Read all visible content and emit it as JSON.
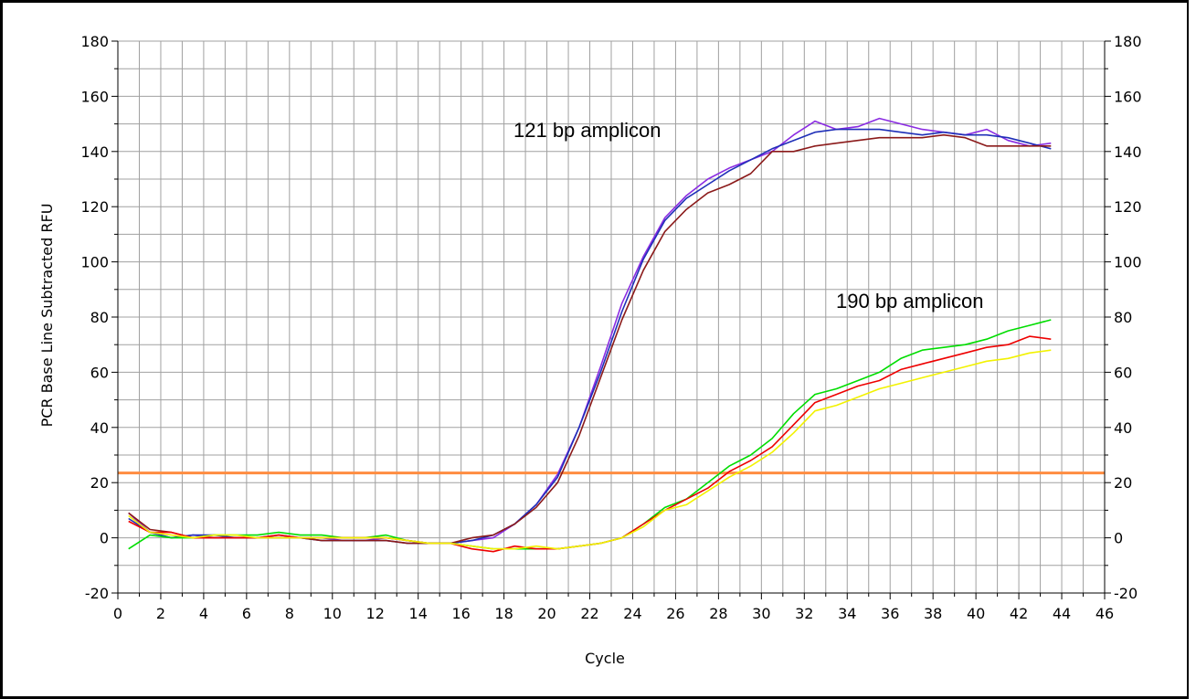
{
  "chart_data": {
    "type": "line",
    "title": "",
    "xlabel": "Cycle",
    "ylabel": "PCR Base Line Subtracted RFU",
    "xlim": [
      0,
      46
    ],
    "ylim": [
      -20,
      180
    ],
    "x_major_ticks": [
      0,
      2,
      4,
      6,
      8,
      10,
      12,
      14,
      16,
      18,
      20,
      22,
      24,
      26,
      28,
      30,
      32,
      34,
      36,
      38,
      40,
      42,
      44,
      46
    ],
    "y_major_ticks": [
      -20,
      0,
      20,
      40,
      60,
      80,
      100,
      120,
      140,
      160,
      180
    ],
    "y_ticks_right": true,
    "grid": true,
    "grid_color": "#a0a0a0",
    "threshold": {
      "value": 23.5,
      "color": "#ff8c40"
    },
    "annotations": [
      {
        "text": "121 bp amplicon",
        "x": 20.5,
        "y": 148
      },
      {
        "text": "190 bp amplicon",
        "x": 33.5,
        "y": 83
      }
    ],
    "series": [
      {
        "color": "#8a2be2",
        "x": [
          0.5,
          1.5,
          2.5,
          3.5,
          4.5,
          5.5,
          6.5,
          7.5,
          8.5,
          9.5,
          10.5,
          11.5,
          12.5,
          13.5,
          14.5,
          15.5,
          16.5,
          17.5,
          18.5,
          19.5,
          20.5,
          21.5,
          22.5,
          23.5,
          24.5,
          25.5,
          26.5,
          27.5,
          28.5,
          29.5,
          30.5,
          31.5,
          32.5,
          33.5,
          34.5,
          35.5,
          36.5,
          37.5,
          38.5,
          39.5,
          40.5,
          41.5,
          42.5,
          43.5
        ],
        "y": [
          9,
          2,
          0,
          1,
          0,
          0,
          0,
          1,
          0,
          0,
          -1,
          -1,
          0,
          -1,
          -2,
          -2,
          -1,
          0,
          5,
          12,
          23,
          40,
          62,
          85,
          102,
          116,
          124,
          130,
          134,
          137,
          140,
          146,
          151,
          148,
          149,
          152,
          150,
          148,
          147,
          146,
          148,
          144,
          142,
          143
        ]
      },
      {
        "color": "#1f2fb8",
        "x": [
          0.5,
          1.5,
          2.5,
          3.5,
          4.5,
          5.5,
          6.5,
          7.5,
          8.5,
          9.5,
          10.5,
          11.5,
          12.5,
          13.5,
          14.5,
          15.5,
          16.5,
          17.5,
          18.5,
          19.5,
          20.5,
          21.5,
          22.5,
          23.5,
          24.5,
          25.5,
          26.5,
          27.5,
          28.5,
          29.5,
          30.5,
          31.5,
          32.5,
          33.5,
          34.5,
          35.5,
          36.5,
          37.5,
          38.5,
          39.5,
          40.5,
          41.5,
          42.5,
          43.5
        ],
        "y": [
          7,
          2,
          0,
          1,
          1,
          0,
          0,
          0,
          0,
          -1,
          -1,
          -1,
          -1,
          -2,
          -2,
          -2,
          -1,
          1,
          5,
          12,
          22,
          40,
          60,
          82,
          101,
          115,
          123,
          128,
          133,
          137,
          141,
          144,
          147,
          148,
          148,
          148,
          147,
          146,
          147,
          146,
          146,
          145,
          143,
          141
        ]
      },
      {
        "color": "#8b1a1a",
        "x": [
          0.5,
          1.5,
          2.5,
          3.5,
          4.5,
          5.5,
          6.5,
          7.5,
          8.5,
          9.5,
          10.5,
          11.5,
          12.5,
          13.5,
          14.5,
          15.5,
          16.5,
          17.5,
          18.5,
          19.5,
          20.5,
          21.5,
          22.5,
          23.5,
          24.5,
          25.5,
          26.5,
          27.5,
          28.5,
          29.5,
          30.5,
          31.5,
          32.5,
          33.5,
          34.5,
          35.5,
          36.5,
          37.5,
          38.5,
          39.5,
          40.5,
          41.5,
          42.5,
          43.5
        ],
        "y": [
          9,
          3,
          2,
          0,
          0,
          0,
          0,
          0,
          0,
          -1,
          -1,
          -1,
          -1,
          -2,
          -2,
          -2,
          0,
          1,
          5,
          11,
          20,
          37,
          58,
          79,
          97,
          111,
          119,
          125,
          128,
          132,
          140,
          140,
          142,
          143,
          144,
          145,
          145,
          145,
          146,
          145,
          142,
          142,
          142,
          142
        ]
      },
      {
        "color": "#00dd00",
        "x": [
          0.5,
          1.5,
          2.5,
          3.5,
          4.5,
          5.5,
          6.5,
          7.5,
          8.5,
          9.5,
          10.5,
          11.5,
          12.5,
          13.5,
          14.5,
          15.5,
          16.5,
          17.5,
          18.5,
          19.5,
          20.5,
          21.5,
          22.5,
          23.5,
          24.5,
          25.5,
          26.5,
          27.5,
          28.5,
          29.5,
          30.5,
          31.5,
          32.5,
          33.5,
          34.5,
          35.5,
          36.5,
          37.5,
          38.5,
          39.5,
          40.5,
          41.5,
          42.5,
          43.5
        ],
        "y": [
          -4,
          1,
          0,
          0,
          1,
          1,
          1,
          2,
          1,
          1,
          0,
          0,
          1,
          -1,
          -2,
          -2,
          -3,
          -4,
          -4,
          -4,
          -4,
          -3,
          -2,
          0,
          5,
          11,
          14,
          20,
          26,
          30,
          36,
          45,
          52,
          54,
          57,
          60,
          65,
          68,
          69,
          70,
          72,
          75,
          77,
          79
        ]
      },
      {
        "color": "#ee0000",
        "x": [
          0.5,
          1.5,
          2.5,
          3.5,
          4.5,
          5.5,
          6.5,
          7.5,
          8.5,
          9.5,
          10.5,
          11.5,
          12.5,
          13.5,
          14.5,
          15.5,
          16.5,
          17.5,
          18.5,
          19.5,
          20.5,
          21.5,
          22.5,
          23.5,
          24.5,
          25.5,
          26.5,
          27.5,
          28.5,
          29.5,
          30.5,
          31.5,
          32.5,
          33.5,
          34.5,
          35.5,
          36.5,
          37.5,
          38.5,
          39.5,
          40.5,
          41.5,
          42.5,
          43.5
        ],
        "y": [
          6,
          2,
          2,
          0,
          0,
          0,
          0,
          1,
          0,
          0,
          0,
          0,
          0,
          -1,
          -2,
          -2,
          -4,
          -5,
          -3,
          -4,
          -4,
          -3,
          -2,
          0,
          5,
          10,
          14,
          18,
          24,
          28,
          33,
          41,
          49,
          52,
          55,
          57,
          61,
          63,
          65,
          67,
          69,
          70,
          73,
          72
        ]
      },
      {
        "color": "#f2f200",
        "x": [
          0.5,
          1.5,
          2.5,
          3.5,
          4.5,
          5.5,
          6.5,
          7.5,
          8.5,
          9.5,
          10.5,
          11.5,
          12.5,
          13.5,
          14.5,
          15.5,
          16.5,
          17.5,
          18.5,
          19.5,
          20.5,
          21.5,
          22.5,
          23.5,
          24.5,
          25.5,
          26.5,
          27.5,
          28.5,
          29.5,
          30.5,
          31.5,
          32.5,
          33.5,
          34.5,
          35.5,
          36.5,
          37.5,
          38.5,
          39.5,
          40.5,
          41.5,
          42.5,
          43.5
        ],
        "y": [
          8,
          2,
          1,
          0,
          1,
          1,
          0,
          0,
          0,
          0,
          0,
          0,
          0,
          -1,
          -2,
          -2,
          -3,
          -4,
          -4,
          -3,
          -4,
          -3,
          -2,
          0,
          4,
          10,
          12,
          17,
          22,
          26,
          31,
          38,
          46,
          48,
          51,
          54,
          56,
          58,
          60,
          62,
          64,
          65,
          67,
          68
        ]
      }
    ]
  }
}
